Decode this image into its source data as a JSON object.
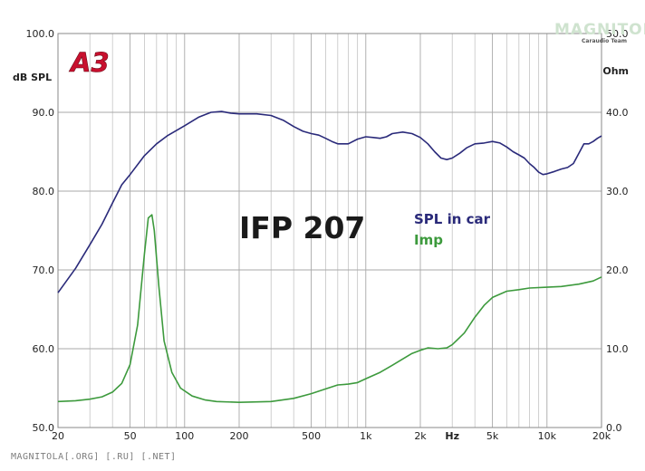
{
  "chart_data": {
    "type": "line",
    "title": "IFP 207",
    "xscale": "log",
    "xlim": [
      20,
      20000
    ],
    "x_tick_labels": [
      "20",
      "50",
      "100",
      "200",
      "500",
      "1k",
      "2k",
      "Hz",
      "5k",
      "10k",
      "20k"
    ],
    "ylabel_left": "dB SPL",
    "ylim_left": [
      50,
      100
    ],
    "y_ticks_left": [
      "50.0",
      "60.0",
      "70.0",
      "80.0",
      "90.0",
      "100.0"
    ],
    "ylabel_right": "Ohm",
    "ylim_right": [
      0,
      50
    ],
    "y_ticks_right": [
      "0.0",
      "10.0",
      "20.0",
      "30.0",
      "40.0",
      "50.0"
    ],
    "grid": true,
    "series": [
      {
        "name": "SPL in car",
        "color": "#2a2a7a",
        "axis": "left",
        "points": [
          [
            20,
            67.1
          ],
          [
            25,
            70.2
          ],
          [
            30,
            73.2
          ],
          [
            35,
            75.8
          ],
          [
            40,
            78.5
          ],
          [
            45,
            80.8
          ],
          [
            50,
            82.1
          ],
          [
            60,
            84.5
          ],
          [
            70,
            86.0
          ],
          [
            80,
            87.0
          ],
          [
            100,
            88.3
          ],
          [
            120,
            89.4
          ],
          [
            140,
            90.0
          ],
          [
            160,
            90.1
          ],
          [
            180,
            89.9
          ],
          [
            200,
            89.8
          ],
          [
            250,
            89.8
          ],
          [
            300,
            89.6
          ],
          [
            350,
            89.0
          ],
          [
            400,
            88.2
          ],
          [
            450,
            87.6
          ],
          [
            500,
            87.3
          ],
          [
            550,
            87.1
          ],
          [
            600,
            86.7
          ],
          [
            650,
            86.3
          ],
          [
            700,
            86.0
          ],
          [
            800,
            86.0
          ],
          [
            900,
            86.6
          ],
          [
            1000,
            86.9
          ],
          [
            1100,
            86.8
          ],
          [
            1200,
            86.7
          ],
          [
            1300,
            86.9
          ],
          [
            1400,
            87.3
          ],
          [
            1600,
            87.5
          ],
          [
            1800,
            87.3
          ],
          [
            2000,
            86.8
          ],
          [
            2200,
            86.0
          ],
          [
            2400,
            85.0
          ],
          [
            2600,
            84.2
          ],
          [
            2800,
            84.0
          ],
          [
            3000,
            84.2
          ],
          [
            3300,
            84.8
          ],
          [
            3600,
            85.5
          ],
          [
            4000,
            86.0
          ],
          [
            4500,
            86.1
          ],
          [
            5000,
            86.3
          ],
          [
            5500,
            86.1
          ],
          [
            6000,
            85.6
          ],
          [
            6500,
            85.0
          ],
          [
            7000,
            84.6
          ],
          [
            7500,
            84.2
          ],
          [
            8000,
            83.5
          ],
          [
            8500,
            83.0
          ],
          [
            9000,
            82.4
          ],
          [
            9500,
            82.1
          ],
          [
            10000,
            82.2
          ],
          [
            11000,
            82.5
          ],
          [
            12000,
            82.8
          ],
          [
            13000,
            83.0
          ],
          [
            14000,
            83.5
          ],
          [
            15000,
            84.8
          ],
          [
            16000,
            86.0
          ],
          [
            17000,
            86.0
          ],
          [
            18000,
            86.3
          ],
          [
            19000,
            86.7
          ],
          [
            20000,
            87.0
          ]
        ]
      },
      {
        "name": "Imp",
        "color": "#3d9a3d",
        "axis": "right",
        "points": [
          [
            20,
            3.3
          ],
          [
            25,
            3.4
          ],
          [
            30,
            3.6
          ],
          [
            35,
            3.9
          ],
          [
            40,
            4.5
          ],
          [
            45,
            5.6
          ],
          [
            50,
            8.0
          ],
          [
            55,
            13.0
          ],
          [
            60,
            22.0
          ],
          [
            63,
            26.6
          ],
          [
            66,
            27.0
          ],
          [
            68,
            25.0
          ],
          [
            72,
            18.0
          ],
          [
            77,
            11.0
          ],
          [
            85,
            7.0
          ],
          [
            95,
            5.0
          ],
          [
            110,
            4.0
          ],
          [
            130,
            3.5
          ],
          [
            150,
            3.3
          ],
          [
            200,
            3.2
          ],
          [
            300,
            3.3
          ],
          [
            400,
            3.7
          ],
          [
            500,
            4.3
          ],
          [
            600,
            4.9
          ],
          [
            700,
            5.4
          ],
          [
            800,
            5.5
          ],
          [
            900,
            5.7
          ],
          [
            1000,
            6.2
          ],
          [
            1200,
            7.0
          ],
          [
            1400,
            7.9
          ],
          [
            1600,
            8.7
          ],
          [
            1800,
            9.4
          ],
          [
            2000,
            9.8
          ],
          [
            2200,
            10.1
          ],
          [
            2500,
            10.0
          ],
          [
            2800,
            10.1
          ],
          [
            3000,
            10.5
          ],
          [
            3500,
            12.0
          ],
          [
            4000,
            14.0
          ],
          [
            4500,
            15.5
          ],
          [
            5000,
            16.5
          ],
          [
            6000,
            17.3
          ],
          [
            7000,
            17.5
          ],
          [
            8000,
            17.7
          ],
          [
            10000,
            17.8
          ],
          [
            12000,
            17.9
          ],
          [
            15000,
            18.2
          ],
          [
            18000,
            18.6
          ],
          [
            20000,
            19.1
          ]
        ]
      }
    ]
  },
  "badge": {
    "text": "A3",
    "color": "#c8102e"
  },
  "watermark": {
    "text": "MAGNITOLA",
    "subtext": "Caraudio Team"
  },
  "footer": "MAGNITOLA[.ORG] [.RU] [.NET]"
}
